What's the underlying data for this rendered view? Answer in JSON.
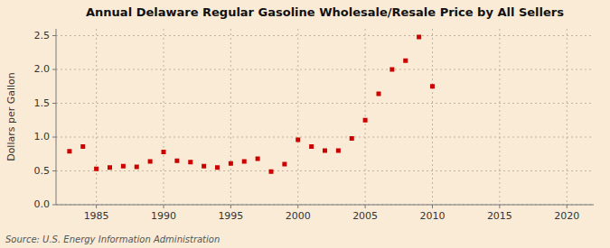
{
  "chart_data": {
    "type": "scatter",
    "title": "Annual Delaware Regular Gasoline Wholesale/Resale Price by All Sellers",
    "ylabel": "Dollars per Gallon",
    "annotations": [
      "Source: U.S. Energy Information Administration"
    ],
    "x": [
      1983,
      1984,
      1985,
      1986,
      1987,
      1988,
      1989,
      1990,
      1991,
      1992,
      1993,
      1994,
      1995,
      1996,
      1997,
      1998,
      1999,
      2000,
      2001,
      2002,
      2003,
      2004,
      2005,
      2006,
      2007,
      2008,
      2009,
      2010
    ],
    "values": [
      0.79,
      0.86,
      0.53,
      0.55,
      0.57,
      0.56,
      0.64,
      0.78,
      0.65,
      0.63,
      0.57,
      0.55,
      0.61,
      0.64,
      0.68,
      0.49,
      0.6,
      0.96,
      0.86,
      0.8,
      0.8,
      0.98,
      1.25,
      1.64,
      2.0,
      2.13,
      2.48,
      1.75
    ],
    "color": "#cc0000",
    "marker": "square",
    "xlim": [
      1982,
      2022
    ],
    "ylim": [
      0.0,
      2.6
    ],
    "xticks": [
      1985,
      1990,
      1995,
      2000,
      2005,
      2010,
      2015,
      2020
    ],
    "yticks": [
      {
        "value": 0,
        "label": "0.0"
      },
      0.5,
      {
        "value": 1,
        "label": "1.0"
      },
      1.5,
      {
        "value": 2,
        "label": "2.0"
      },
      2.5
    ],
    "grid": true
  }
}
